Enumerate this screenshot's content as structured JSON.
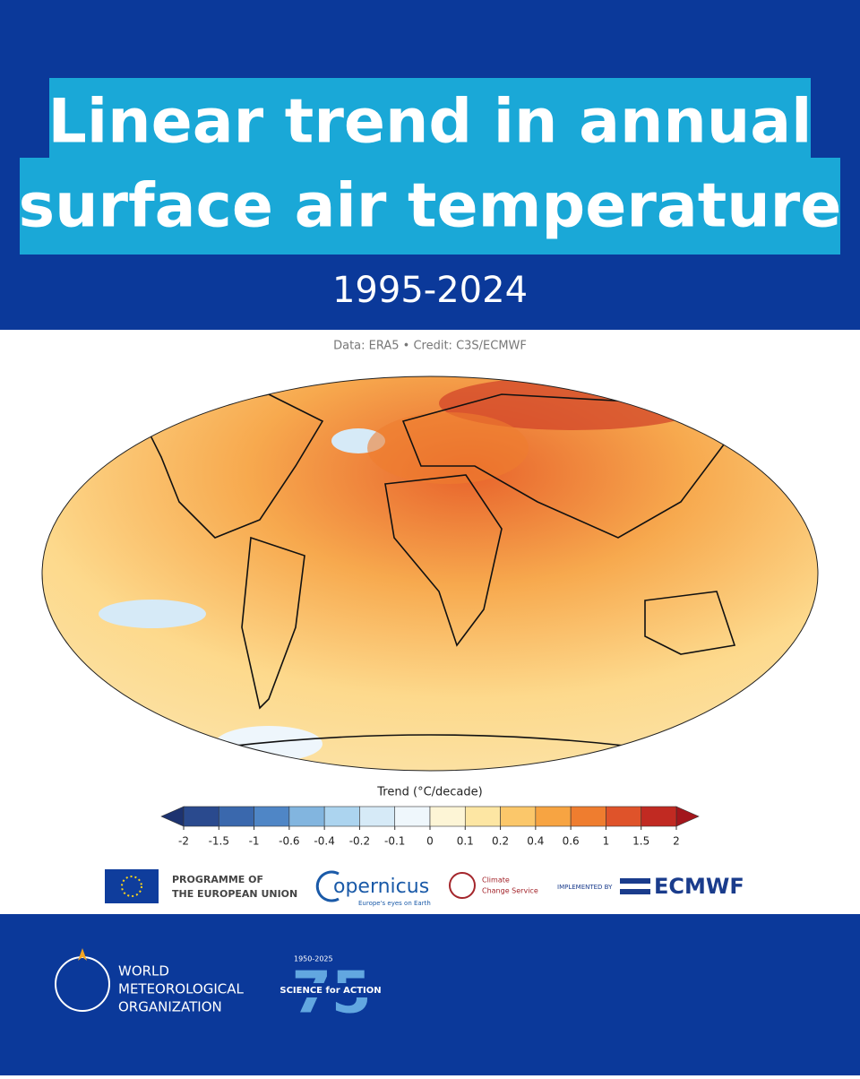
{
  "header": {
    "title_lines": [
      "Linear trend in annual",
      "surface air temperature"
    ],
    "subtitle": "1995-2024"
  },
  "credit": "Data: ERA5 • Credit: C3S/ECMWF",
  "colorbar": {
    "title": "Trend (°C/decade)",
    "boundaries": [
      -2,
      -1.5,
      -1,
      -0.6,
      -0.4,
      -0.2,
      -0.1,
      0,
      0.1,
      0.2,
      0.4,
      0.6,
      1,
      1.5,
      2
    ],
    "colors": [
      "#2a4a8e",
      "#3a68ad",
      "#4f86c6",
      "#82b5df",
      "#acd4ef",
      "#d6eaf7",
      "#eff7fc",
      "#fdf5d6",
      "#fde6a3",
      "#fbc76a",
      "#f7a442",
      "#ef7d2f",
      "#df532a",
      "#c12a22"
    ],
    "under_color": "#1d3370",
    "over_color": "#a3161c"
  },
  "logos": {
    "eu": [
      "PROGRAMME OF",
      "THE EUROPEAN UNION"
    ],
    "copernicus": {
      "name": "opernicus",
      "tagline": "Europe's eyes on Earth"
    },
    "c3s": [
      "Climate",
      "Change Service"
    ],
    "ecmwf": {
      "prefix": "IMPLEMENTED BY",
      "name": "ECMWF"
    },
    "wmo": [
      "WORLD",
      "METEOROLOGICAL",
      "ORGANIZATION"
    ],
    "anniversary": {
      "years": "1950-2025",
      "motto": "SCIENCE for ACTION",
      "number": "75"
    }
  }
}
